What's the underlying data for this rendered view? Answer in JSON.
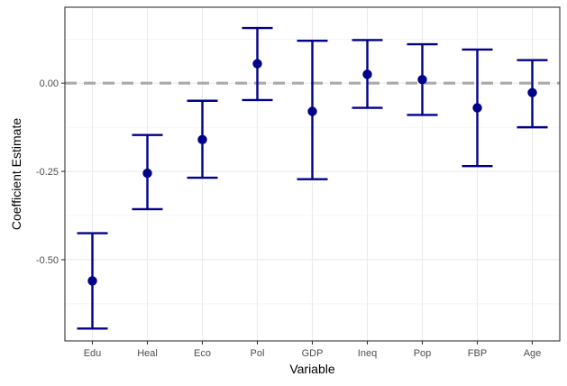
{
  "chart_data": {
    "type": "scatter",
    "subtype": "coefficient-plot-with-error-bars",
    "title": "",
    "xlabel": "Variable",
    "ylabel": "Coefficient Estimate",
    "categories": [
      "Edu",
      "Heal",
      "Eco",
      "Pol",
      "GDP",
      "Ineq",
      "Pop",
      "FBP",
      "Age"
    ],
    "estimates": [
      -0.56,
      -0.255,
      -0.16,
      0.055,
      -0.08,
      0.025,
      0.01,
      -0.07,
      -0.027
    ],
    "lower": [
      -0.695,
      -0.357,
      -0.268,
      -0.048,
      -0.272,
      -0.07,
      -0.09,
      -0.235,
      -0.125
    ],
    "upper": [
      -0.425,
      -0.147,
      -0.05,
      0.156,
      0.12,
      0.122,
      0.11,
      0.095,
      0.065
    ],
    "yticks": [
      -0.5,
      -0.25,
      0.0
    ],
    "ytick_labels": [
      "-0.50",
      "-0.25",
      "0.00"
    ],
    "ylim": [
      -0.73,
      0.215
    ],
    "reference_line": 0,
    "grid": true,
    "colors": {
      "point": "#00008B",
      "errorbar": "#00008B",
      "reference": "#AAAAAA",
      "grid": "#EBEBEB",
      "panel_border": "#333333"
    }
  }
}
